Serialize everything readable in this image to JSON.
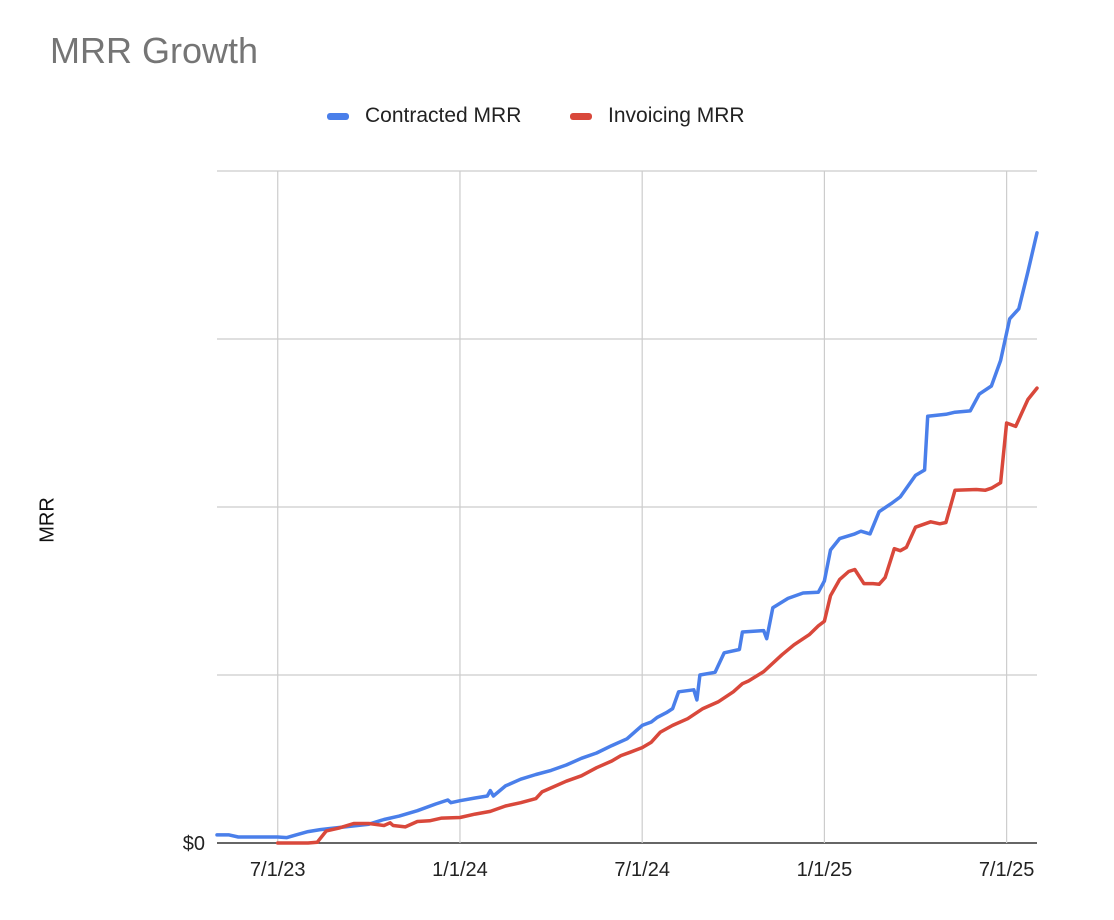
{
  "chart_data": {
    "type": "line",
    "title": "MRR Growth",
    "xlabel": "",
    "ylabel": "MRR",
    "ytick_labels": [
      "$0"
    ],
    "xtick_labels": [
      "7/1/23",
      "1/1/24",
      "7/1/24",
      "1/1/25",
      "7/1/25"
    ],
    "xlim_months": [
      0,
      27
    ],
    "xticks_months": [
      2,
      8,
      14,
      20,
      26
    ],
    "ylim": [
      0,
      100
    ],
    "ygrid": [
      0,
      25,
      50,
      75,
      100
    ],
    "grid": true,
    "legend_position": "top-center",
    "series": [
      {
        "name": "Contracted MRR",
        "color": "#4a7fea",
        "points": [
          [
            0.0,
            1.2
          ],
          [
            0.4,
            1.2
          ],
          [
            0.7,
            0.9
          ],
          [
            1.0,
            0.9
          ],
          [
            1.5,
            0.9
          ],
          [
            2.0,
            0.9
          ],
          [
            2.3,
            0.8
          ],
          [
            2.6,
            1.2
          ],
          [
            3.0,
            1.7
          ],
          [
            3.4,
            2.0
          ],
          [
            3.8,
            2.2
          ],
          [
            4.4,
            2.5
          ],
          [
            5.0,
            2.8
          ],
          [
            5.5,
            3.5
          ],
          [
            6.0,
            4.0
          ],
          [
            6.6,
            4.8
          ],
          [
            7.2,
            5.8
          ],
          [
            7.6,
            6.4
          ],
          [
            7.7,
            6.0
          ],
          [
            8.0,
            6.3
          ],
          [
            8.5,
            6.7
          ],
          [
            8.9,
            7.0
          ],
          [
            9.0,
            7.8
          ],
          [
            9.1,
            7.0
          ],
          [
            9.5,
            8.5
          ],
          [
            10.0,
            9.5
          ],
          [
            10.5,
            10.2
          ],
          [
            11.0,
            10.8
          ],
          [
            11.5,
            11.6
          ],
          [
            12.0,
            12.6
          ],
          [
            12.5,
            13.4
          ],
          [
            13.0,
            14.5
          ],
          [
            13.5,
            15.5
          ],
          [
            14.0,
            17.5
          ],
          [
            14.3,
            18.0
          ],
          [
            14.5,
            18.7
          ],
          [
            14.8,
            19.4
          ],
          [
            15.0,
            20.0
          ],
          [
            15.2,
            22.5
          ],
          [
            15.7,
            22.8
          ],
          [
            15.8,
            21.3
          ],
          [
            15.9,
            25.0
          ],
          [
            16.4,
            25.4
          ],
          [
            16.7,
            28.3
          ],
          [
            17.2,
            28.8
          ],
          [
            17.3,
            31.4
          ],
          [
            18.0,
            31.6
          ],
          [
            18.1,
            30.4
          ],
          [
            18.3,
            35.0
          ],
          [
            18.8,
            36.4
          ],
          [
            19.3,
            37.2
          ],
          [
            19.8,
            37.3
          ],
          [
            20.0,
            39.0
          ],
          [
            20.2,
            43.6
          ],
          [
            20.5,
            45.3
          ],
          [
            21.0,
            46.0
          ],
          [
            21.2,
            46.4
          ],
          [
            21.5,
            46.0
          ],
          [
            21.8,
            49.3
          ],
          [
            22.2,
            50.5
          ],
          [
            22.5,
            51.5
          ],
          [
            23.0,
            54.7
          ],
          [
            23.3,
            55.5
          ],
          [
            23.4,
            63.5
          ],
          [
            24.0,
            63.8
          ],
          [
            24.3,
            64.1
          ],
          [
            24.8,
            64.3
          ],
          [
            25.1,
            66.8
          ],
          [
            25.5,
            68.0
          ],
          [
            25.8,
            71.8
          ],
          [
            26.1,
            78.0
          ],
          [
            26.4,
            79.5
          ],
          [
            26.7,
            85.0
          ],
          [
            27.0,
            90.8
          ]
        ]
      },
      {
        "name": "Invoicing MRR",
        "color": "#d9483b",
        "points": [
          [
            2.0,
            0.0
          ],
          [
            3.0,
            0.0
          ],
          [
            3.3,
            0.1
          ],
          [
            3.6,
            1.8
          ],
          [
            4.0,
            2.2
          ],
          [
            4.5,
            2.9
          ],
          [
            5.0,
            2.9
          ],
          [
            5.5,
            2.6
          ],
          [
            5.7,
            3.0
          ],
          [
            5.8,
            2.6
          ],
          [
            6.2,
            2.4
          ],
          [
            6.6,
            3.2
          ],
          [
            7.0,
            3.3
          ],
          [
            7.4,
            3.7
          ],
          [
            8.0,
            3.8
          ],
          [
            8.5,
            4.3
          ],
          [
            9.0,
            4.7
          ],
          [
            9.5,
            5.5
          ],
          [
            10.0,
            6.0
          ],
          [
            10.5,
            6.6
          ],
          [
            10.7,
            7.6
          ],
          [
            11.0,
            8.2
          ],
          [
            11.5,
            9.2
          ],
          [
            12.0,
            10.0
          ],
          [
            12.5,
            11.2
          ],
          [
            13.0,
            12.2
          ],
          [
            13.3,
            13.0
          ],
          [
            13.6,
            13.5
          ],
          [
            14.0,
            14.2
          ],
          [
            14.3,
            15.0
          ],
          [
            14.6,
            16.5
          ],
          [
            15.0,
            17.5
          ],
          [
            15.5,
            18.5
          ],
          [
            16.0,
            20.0
          ],
          [
            16.5,
            21.0
          ],
          [
            17.0,
            22.5
          ],
          [
            17.3,
            23.7
          ],
          [
            17.5,
            24.1
          ],
          [
            18.0,
            25.5
          ],
          [
            18.6,
            28.0
          ],
          [
            19.0,
            29.5
          ],
          [
            19.5,
            31.0
          ],
          [
            19.8,
            32.3
          ],
          [
            20.0,
            33.0
          ],
          [
            20.2,
            36.8
          ],
          [
            20.5,
            39.2
          ],
          [
            20.8,
            40.4
          ],
          [
            21.0,
            40.7
          ],
          [
            21.3,
            38.6
          ],
          [
            21.6,
            38.6
          ],
          [
            21.8,
            38.5
          ],
          [
            22.0,
            39.5
          ],
          [
            22.3,
            43.8
          ],
          [
            22.5,
            43.5
          ],
          [
            22.7,
            44.0
          ],
          [
            23.0,
            47.0
          ],
          [
            23.5,
            47.8
          ],
          [
            23.8,
            47.5
          ],
          [
            24.0,
            47.7
          ],
          [
            24.3,
            52.5
          ],
          [
            25.0,
            52.6
          ],
          [
            25.3,
            52.5
          ],
          [
            25.5,
            52.8
          ],
          [
            25.8,
            53.6
          ],
          [
            26.0,
            62.5
          ],
          [
            26.3,
            62.0
          ],
          [
            26.5,
            64.0
          ],
          [
            26.7,
            66.0
          ],
          [
            27.0,
            67.7
          ]
        ]
      }
    ]
  }
}
